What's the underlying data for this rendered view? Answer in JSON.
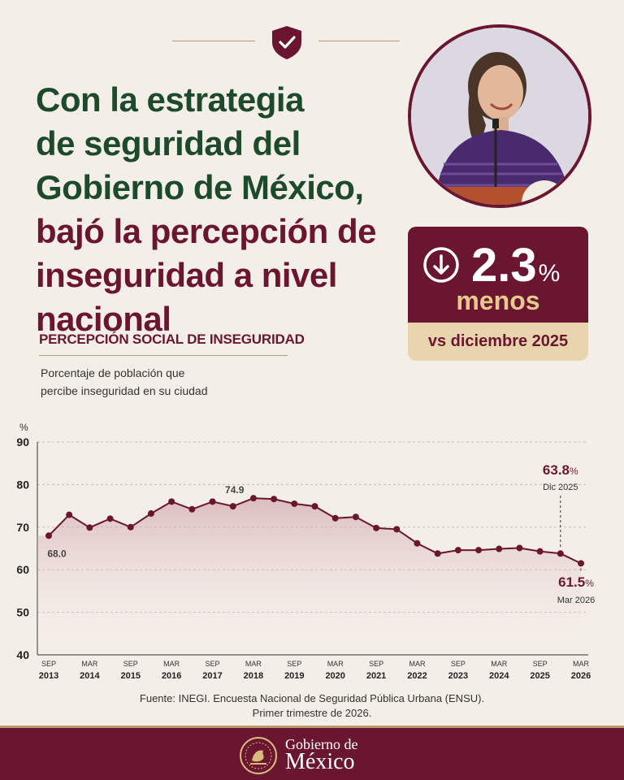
{
  "header": {
    "title_lines": [
      "Con la estrategia",
      "de seguridad del",
      "Gobierno de México,",
      "bajó la percepción de",
      "inseguridad a nivel nacional"
    ]
  },
  "stat": {
    "value": "2.3",
    "unit": "%",
    "label": "menos",
    "comparison": "vs diciembre 2025"
  },
  "section": {
    "title": "PERCEPCIÓN SOCIAL DE INSEGURIDAD",
    "subtitle_lines": [
      "Porcentaje de población que",
      "percibe inseguridad en su ciudad"
    ]
  },
  "chart_data": {
    "type": "line",
    "ylabel": "%",
    "ylim": [
      40,
      90
    ],
    "yticks": [
      40,
      50,
      60,
      70,
      80,
      90
    ],
    "grid": true,
    "x_ticks": [
      {
        "m": "SEP",
        "y": "2013"
      },
      {
        "m": "MAR",
        "y": "2014"
      },
      {
        "m": "SEP",
        "y": "2015"
      },
      {
        "m": "MAR",
        "y": "2016"
      },
      {
        "m": "SEP",
        "y": "2017"
      },
      {
        "m": "MAR",
        "y": "2018"
      },
      {
        "m": "SEP",
        "y": "2019"
      },
      {
        "m": "MAR",
        "y": "2020"
      },
      {
        "m": "SEP",
        "y": "2021"
      },
      {
        "m": "MAR",
        "y": "2022"
      },
      {
        "m": "SEP",
        "y": "2023"
      },
      {
        "m": "MAR",
        "y": "2024"
      },
      {
        "m": "SEP",
        "y": "2025"
      },
      {
        "m": "MAR",
        "y": "2026"
      }
    ],
    "values": [
      68.0,
      72.9,
      69.9,
      72.0,
      70.0,
      73.2,
      76.0,
      74.2,
      76.0,
      74.9,
      76.8,
      76.6,
      75.5,
      74.9,
      72.1,
      72.4,
      69.8,
      69.5,
      66.2,
      63.8,
      64.6,
      64.6,
      64.9,
      65.1,
      64.3,
      63.8,
      61.5
    ],
    "annotations": {
      "first": {
        "index": 0,
        "label": "68.0"
      },
      "peak": {
        "index": 9,
        "label": "74.9"
      },
      "dic": {
        "index": 25,
        "value": "63.8",
        "unit": "%",
        "date": "Dic 2025"
      },
      "mar": {
        "index": 26,
        "value": "61.5",
        "unit": "%",
        "date": "Mar 2026"
      }
    }
  },
  "source_lines": [
    "Fuente: INEGI. Encuesta Nacional de Seguridad Pública Urbana (ENSU).",
    "Primer trimestre de 2026."
  ],
  "footer": {
    "line1": "Gobierno de",
    "line2": "México"
  },
  "colors": {
    "maroon": "#6b1630",
    "green": "#1e4a2c",
    "gold": "#b79b6a",
    "bg": "#f4eee9"
  }
}
